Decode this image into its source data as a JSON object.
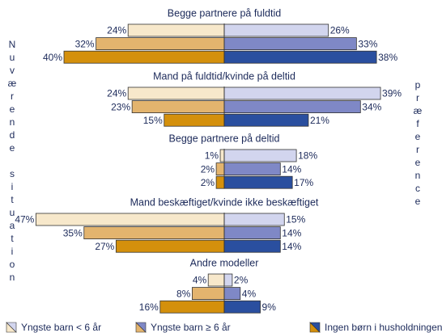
{
  "chart_data": {
    "type": "butterfly",
    "left_label": "Nuværende situation",
    "right_label": "præference",
    "categories": [
      "Begge partnere på fuldtid",
      "Mand på fuldtid/kvinde på deltid",
      "Begge partnere på deltid",
      "Mand beskæftiget/kvinde ikke beskæftiget",
      "Andre modeller"
    ],
    "series": [
      {
        "name": "Yngste barn < 6 år",
        "color_left": "#f7e8cb",
        "color_right": "#d2d5ee",
        "left_values": [
          24,
          24,
          1,
          47,
          4
        ],
        "left_value_labels": [
          "24%",
          "24%",
          "1%",
          "47%",
          "4%"
        ],
        "right_values": [
          26,
          39,
          18,
          15,
          2
        ],
        "right_value_labels": [
          "26%",
          "39%",
          "18%",
          "15%",
          "2%"
        ]
      },
      {
        "name": "Yngste barn ≥ 6 år",
        "color_left": "#e3b46e",
        "color_right": "#7f88c6",
        "left_values": [
          32,
          23,
          2,
          35,
          8
        ],
        "left_value_labels": [
          "32%",
          "23%",
          "2%",
          "35%",
          "8%"
        ],
        "right_values": [
          33,
          34,
          14,
          14,
          4
        ],
        "right_value_labels": [
          "33%",
          "34%",
          "14%",
          "14%",
          "4%"
        ]
      },
      {
        "name": "Ingen børn i husholdningen",
        "color_left": "#d4900c",
        "color_right": "#2a4f9f",
        "left_values": [
          40,
          15,
          2,
          27,
          16
        ],
        "left_value_labels": [
          "40%",
          "15%",
          "2%",
          "27%",
          "16%"
        ],
        "right_values": [
          38,
          21,
          17,
          14,
          9
        ],
        "right_value_labels": [
          "38%",
          "21%",
          "17%",
          "14%",
          "9%"
        ]
      }
    ]
  }
}
